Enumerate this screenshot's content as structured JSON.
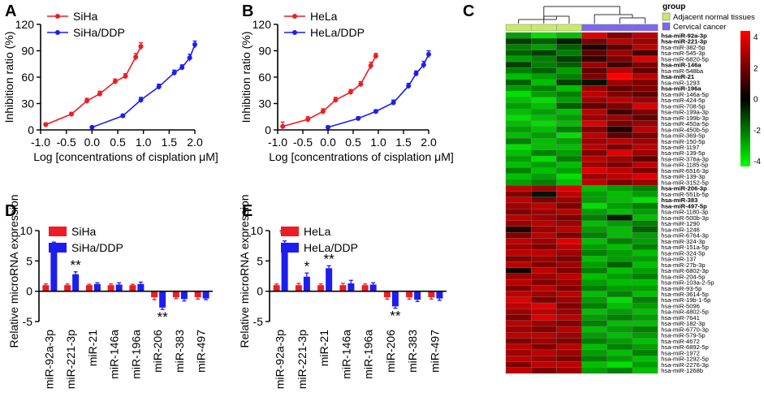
{
  "panel_labels": [
    "A",
    "B",
    "C",
    "D",
    "E"
  ],
  "colors": {
    "red": "#ee1c24",
    "blue": "#1d1df0",
    "normal": "#c8e96b",
    "cancer": "#7b68ee"
  },
  "chart_data": [
    {
      "id": "A",
      "type": "line",
      "xlabel": "Log [concentrations of cisplation μM]",
      "ylabel": "Inhibition ratio (%)",
      "xlim": [
        -1.0,
        2.0
      ],
      "ylim": [
        0,
        120
      ],
      "xticks": [
        -1.0,
        -0.5,
        0.0,
        0.5,
        1.0,
        1.5,
        2.0
      ],
      "xtick_labels": [
        "-1.0",
        "-0.5",
        "0.0",
        "0.5",
        "1.0",
        "1.5",
        "2.0"
      ],
      "yticks": [
        0,
        30,
        60,
        90,
        120
      ],
      "series": [
        {
          "name": "SiHa",
          "color": "#ee1c24",
          "x": [
            -0.9,
            -0.4,
            -0.1,
            0.15,
            0.45,
            0.65,
            0.85,
            0.95
          ],
          "y": [
            6,
            18,
            33,
            41,
            55,
            61,
            83,
            95
          ],
          "err": [
            2,
            2,
            3,
            3,
            3,
            3,
            4,
            4
          ]
        },
        {
          "name": "SiHa/DDP",
          "color": "#1d1df0",
          "x": [
            0.0,
            0.6,
            0.95,
            1.3,
            1.6,
            1.75,
            1.9,
            2.0
          ],
          "y": [
            3,
            16,
            34,
            49,
            65,
            71,
            82,
            97
          ],
          "err": [
            1,
            2,
            3,
            3,
            3,
            3,
            4,
            4
          ]
        }
      ]
    },
    {
      "id": "B",
      "type": "line",
      "xlabel": "Log [concentrations of cisplation μM]",
      "ylabel": "Inhibition ratio (%)",
      "xlim": [
        -1.0,
        2.0
      ],
      "ylim": [
        0,
        120
      ],
      "xticks": [
        -1.0,
        -0.5,
        0.0,
        0.5,
        1.0,
        1.5,
        2.0
      ],
      "xtick_labels": [
        "-1.0",
        "-0.5",
        "0.0",
        "0.5",
        "1.0",
        "1.5",
        "2.0"
      ],
      "yticks": [
        0,
        30,
        60,
        90,
        120
      ],
      "series": [
        {
          "name": "HeLa",
          "color": "#ee1c24",
          "x": [
            -0.9,
            -0.4,
            -0.1,
            0.15,
            0.45,
            0.65,
            0.85,
            0.95
          ],
          "y": [
            4,
            12,
            21,
            34,
            43,
            52,
            73,
            84
          ],
          "err": [
            5,
            3,
            3,
            3,
            3,
            3,
            4,
            3
          ]
        },
        {
          "name": "HeLa/DDP",
          "color": "#1d1df0",
          "x": [
            0.0,
            0.6,
            0.95,
            1.3,
            1.6,
            1.75,
            1.9,
            2.0
          ],
          "y": [
            3,
            13,
            21,
            31,
            50,
            64,
            74,
            86
          ],
          "err": [
            1,
            2,
            2,
            3,
            3,
            3,
            4,
            4
          ]
        }
      ]
    },
    {
      "id": "D",
      "type": "bar",
      "ylabel": "Relative microRNA expression",
      "ylim": [
        -5,
        10
      ],
      "yticks": [
        -5,
        0,
        5,
        10
      ],
      "categories": [
        "miR-92a-3p",
        "miR-221-3p",
        "miR-21",
        "miR-146a",
        "miR-196a",
        "miR-206",
        "miR-383",
        "miR-497"
      ],
      "series": [
        {
          "name": "SiHa",
          "color": "#ee1c24",
          "values": [
            1,
            1,
            1,
            1,
            1,
            -1,
            -1,
            -1
          ],
          "err": [
            0.2,
            0.2,
            0.15,
            0.2,
            0.15,
            0.4,
            0.2,
            0.3
          ]
        },
        {
          "name": "SiHa/DDP",
          "color": "#1d1df0",
          "values": [
            6.8,
            2.8,
            1.2,
            1.1,
            1.2,
            -2.7,
            -1.3,
            -1.2
          ],
          "err": [
            1.3,
            0.4,
            0.2,
            0.3,
            0.3,
            0.3,
            0.3,
            0.2
          ]
        }
      ],
      "annotations": [
        {
          "category": "miR-92a-3p",
          "text": "**",
          "position": "above"
        },
        {
          "category": "miR-221-3p",
          "text": "**",
          "position": "above"
        },
        {
          "category": "miR-206",
          "text": "**",
          "position": "below"
        }
      ]
    },
    {
      "id": "E",
      "type": "bar",
      "ylabel": "Relative microRNA expression",
      "ylim": [
        -5,
        10
      ],
      "yticks": [
        -5,
        0,
        5,
        10
      ],
      "categories": [
        "miR-92a-3p",
        "miR-221-3p",
        "miR-21",
        "miR-146a",
        "miR-196a",
        "miR-206",
        "miR-383",
        "miR-497"
      ],
      "series": [
        {
          "name": "HeLa",
          "color": "#ee1c24",
          "values": [
            1,
            1,
            1,
            1,
            1,
            -1,
            -1,
            -1
          ],
          "err": [
            0.2,
            0.3,
            0.2,
            0.3,
            0.2,
            0.3,
            0.3,
            0.3
          ]
        },
        {
          "name": "HeLa/DDP",
          "color": "#1d1df0",
          "values": [
            7.8,
            2.4,
            3.8,
            1.3,
            1.1,
            -2.5,
            -1.4,
            -1.2
          ],
          "err": [
            0.5,
            0.6,
            0.4,
            0.5,
            0.3,
            0.3,
            0.3,
            0.3
          ]
        }
      ],
      "annotations": [
        {
          "category": "miR-92a-3p",
          "text": "**",
          "position": "above"
        },
        {
          "category": "miR-221-3p",
          "text": "*",
          "position": "above"
        },
        {
          "category": "miR-21",
          "text": "**",
          "position": "above"
        },
        {
          "category": "miR-206",
          "text": "**",
          "position": "below"
        }
      ]
    },
    {
      "id": "C",
      "type": "heatmap",
      "legend_title": "group",
      "groups": [
        {
          "name": "Adjacent normal tissues",
          "color": "#c8e96b",
          "count": 3
        },
        {
          "name": "Cervical cancer",
          "color": "#7b68ee",
          "count": 3
        }
      ],
      "colorbar": {
        "min": -4,
        "max": 4,
        "ticks": [
          4,
          2,
          0,
          -2,
          -4
        ],
        "low_color": "#00ff00",
        "mid_color": "#000000",
        "high_color": "#ff0000"
      },
      "bold_rows": [
        "hsa-miR-92a-3p",
        "hsa-miR-221-3p",
        "hsa-miR-146a",
        "hsa-miR-21",
        "hsa-miR-196a",
        "hsa-miR-206-3p",
        "hsa-miR-383",
        "hsa-miR-497-5p"
      ],
      "rows": [
        {
          "label": "hsa-miR-92a-3p",
          "values": [
            -2.5,
            -3.5,
            -3.0,
            3.5,
            2.0,
            3.0
          ]
        },
        {
          "label": "hsa-miR-221-3p",
          "values": [
            -1.0,
            -1.5,
            -0.5,
            2.0,
            3.0,
            2.5
          ]
        },
        {
          "label": "hsa-miR-382-5p",
          "values": [
            -2.0,
            -2.5,
            -1.5,
            0.5,
            1.5,
            3.0
          ]
        },
        {
          "label": "hsa-miR-545-3p",
          "values": [
            -1.5,
            -1.0,
            -2.0,
            1.5,
            2.5,
            1.0
          ]
        },
        {
          "label": "hsa-miR-6820-5p",
          "values": [
            -2.5,
            -2.0,
            -1.0,
            0.8,
            2.0,
            3.5
          ]
        },
        {
          "label": "hsa-miR-146a",
          "values": [
            -1.0,
            -2.0,
            -1.5,
            2.5,
            1.0,
            2.0
          ]
        },
        {
          "label": "hsa-miR-548ba",
          "values": [
            -2.0,
            -1.5,
            -2.5,
            1.5,
            3.0,
            1.5
          ]
        },
        {
          "label": "hsa-miR-21",
          "values": [
            -3.0,
            -2.5,
            -2.0,
            2.0,
            4.0,
            3.0
          ]
        },
        {
          "label": "hsa-miR-1293",
          "values": [
            -1.5,
            -3.0,
            -1.0,
            -0.3,
            2.5,
            2.0
          ]
        },
        {
          "label": "hsa-miR-196a",
          "values": [
            -2.5,
            -2.0,
            -3.0,
            2.5,
            1.5,
            2.0
          ]
        },
        {
          "label": "hsa-miR-146a-5p",
          "values": [
            -3.5,
            -2.5,
            -2.0,
            3.0,
            2.0,
            1.5
          ]
        },
        {
          "label": "hsa-miR-424-5p",
          "values": [
            -3.0,
            -3.5,
            -2.5,
            2.5,
            3.0,
            2.5
          ]
        },
        {
          "label": "hsa-miR-708-5p",
          "values": [
            -2.5,
            -3.0,
            -1.5,
            1.5,
            2.0,
            3.5
          ]
        },
        {
          "label": "hsa-miR-199a-3p",
          "values": [
            -3.0,
            -2.5,
            -3.0,
            3.0,
            1.0,
            2.0
          ]
        },
        {
          "label": "hsa-miR-199b-3p",
          "values": [
            -3.5,
            -3.0,
            -2.5,
            2.5,
            2.5,
            1.5
          ]
        },
        {
          "label": "hsa-miR-450a-5p",
          "values": [
            -3.0,
            -3.5,
            -3.0,
            3.5,
            2.0,
            2.5
          ]
        },
        {
          "label": "hsa-miR-450b-5p",
          "values": [
            -2.5,
            -3.0,
            -2.0,
            2.0,
            0.5,
            3.0
          ]
        },
        {
          "label": "hsa-miR-369-5p",
          "values": [
            -3.0,
            -2.5,
            -3.5,
            3.0,
            1.5,
            2.0
          ]
        },
        {
          "label": "hsa-miR-150-5p",
          "values": [
            -2.0,
            -3.0,
            -2.5,
            2.5,
            3.0,
            2.5
          ]
        },
        {
          "label": "hsa-miR-1197",
          "values": [
            -3.5,
            -3.0,
            -3.0,
            3.0,
            2.0,
            3.0
          ]
        },
        {
          "label": "hsa-miR-139-5p",
          "values": [
            -3.0,
            -2.0,
            -2.5,
            2.0,
            3.5,
            2.5
          ]
        },
        {
          "label": "hsa-miR-376a-3p",
          "values": [
            -2.5,
            -3.5,
            -2.0,
            3.0,
            2.5,
            1.5
          ]
        },
        {
          "label": "hsa-miR-1185-5p",
          "values": [
            -3.0,
            -2.5,
            -3.0,
            2.5,
            2.0,
            3.0
          ]
        },
        {
          "label": "hsa-miR-6516-3p",
          "values": [
            -2.0,
            -3.0,
            -2.5,
            3.5,
            3.0,
            2.0
          ]
        },
        {
          "label": "hsa-miR-139-3p",
          "values": [
            -3.0,
            -2.5,
            -3.5,
            2.5,
            3.0,
            3.5
          ]
        },
        {
          "label": "hsa-miR-3152-5p",
          "values": [
            -2.5,
            -2.0,
            -3.0,
            3.0,
            2.0,
            2.5
          ]
        },
        {
          "label": "hsa-miR-206-3p",
          "values": [
            3.0,
            2.5,
            3.5,
            -3.0,
            -2.5,
            -2.0
          ]
        },
        {
          "label": "hsa-miR-551b-5p",
          "values": [
            2.0,
            -0.3,
            3.0,
            -2.5,
            -3.0,
            -2.5
          ]
        },
        {
          "label": "hsa-miR-383",
          "values": [
            3.0,
            2.0,
            2.5,
            -2.5,
            -3.0,
            -3.5
          ]
        },
        {
          "label": "hsa-miR-497-5p",
          "values": [
            2.5,
            3.0,
            2.0,
            -3.5,
            -2.5,
            -2.0
          ]
        },
        {
          "label": "hsa-miR-1180-3p",
          "values": [
            2.0,
            2.5,
            3.0,
            -2.5,
            -3.0,
            -2.5
          ]
        },
        {
          "label": "hsa-miR-500b-3p",
          "values": [
            3.0,
            2.5,
            2.0,
            -2.0,
            -0.5,
            -3.0
          ]
        },
        {
          "label": "hsa-miR-1290",
          "values": [
            2.5,
            3.0,
            2.5,
            -3.0,
            -2.5,
            -2.0
          ]
        },
        {
          "label": "hsa-miR-1246",
          "values": [
            0.5,
            2.5,
            3.0,
            -2.5,
            -3.0,
            -1.5
          ]
        },
        {
          "label": "hsa-miR-6764-3p",
          "values": [
            2.0,
            3.0,
            2.0,
            -2.0,
            -3.0,
            -2.5
          ]
        },
        {
          "label": "hsa-miR-324-3p",
          "values": [
            3.0,
            2.5,
            3.5,
            -3.0,
            -2.0,
            -2.5
          ]
        },
        {
          "label": "hsa-miR-151a-5p",
          "values": [
            2.5,
            2.0,
            3.0,
            -2.5,
            -3.0,
            -2.0
          ]
        },
        {
          "label": "hsa-miR-324-5p",
          "values": [
            3.0,
            3.0,
            2.5,
            -2.0,
            -2.5,
            -3.0
          ]
        },
        {
          "label": "hsa-miR-137",
          "values": [
            2.0,
            2.5,
            2.0,
            -3.0,
            -2.5,
            -2.5
          ]
        },
        {
          "label": "hsa-miR-27b-3p",
          "values": [
            3.0,
            2.0,
            2.5,
            -2.5,
            -1.5,
            -3.0
          ]
        },
        {
          "label": "hsa-miR-6802-3p",
          "values": [
            0.3,
            3.0,
            2.0,
            -2.0,
            -3.0,
            -2.5
          ]
        },
        {
          "label": "hsa-miR-204-5p",
          "values": [
            2.5,
            2.5,
            3.0,
            -3.0,
            -2.5,
            -2.0
          ]
        },
        {
          "label": "hsa-miR-103a-2-5p",
          "values": [
            3.0,
            2.0,
            2.5,
            -2.5,
            -3.0,
            -3.0
          ]
        },
        {
          "label": "hsa-miR-93-5p",
          "values": [
            2.0,
            3.0,
            2.0,
            -2.0,
            -2.5,
            -2.5
          ]
        },
        {
          "label": "hsa-miR-3614-5p",
          "values": [
            3.0,
            2.5,
            3.0,
            -3.0,
            -2.0,
            -3.0
          ]
        },
        {
          "label": "hsa-miR-19b-1-5p",
          "values": [
            3.5,
            2.0,
            2.5,
            -2.5,
            -3.5,
            -2.0
          ]
        },
        {
          "label": "hsa-miR-5096",
          "values": [
            3.0,
            3.5,
            2.0,
            -2.0,
            -3.0,
            -2.5
          ]
        },
        {
          "label": "hsa-miR-4802-5p",
          "values": [
            2.5,
            3.0,
            2.5,
            -3.0,
            -2.5,
            -3.0
          ]
        },
        {
          "label": "hsa-miR-7641",
          "values": [
            2.0,
            3.5,
            3.0,
            -2.5,
            -2.0,
            -2.5
          ]
        },
        {
          "label": "hsa-miR-182-3p",
          "values": [
            3.0,
            2.5,
            2.0,
            -2.0,
            -3.0,
            -3.0
          ]
        },
        {
          "label": "hsa-miR-6770-3p",
          "values": [
            2.5,
            2.0,
            3.0,
            -3.0,
            -2.5,
            -2.0
          ]
        },
        {
          "label": "hsa-miR-579-5p",
          "values": [
            3.0,
            3.0,
            2.5,
            -2.5,
            -3.0,
            -2.5
          ]
        },
        {
          "label": "hsa-miR-4672",
          "values": [
            2.0,
            2.5,
            2.0,
            -2.0,
            -2.5,
            -3.0
          ]
        },
        {
          "label": "hsa-miR-6892-5p",
          "values": [
            3.0,
            2.0,
            3.0,
            -3.0,
            -2.0,
            -2.5
          ]
        },
        {
          "label": "hsa-miR-1972",
          "values": [
            2.5,
            3.0,
            2.5,
            -2.5,
            -3.0,
            -2.0
          ]
        },
        {
          "label": "hsa-miR-1292-5p",
          "values": [
            3.0,
            2.5,
            2.0,
            -2.0,
            -2.5,
            -3.0
          ]
        },
        {
          "label": "hsa-miR-2276-3p",
          "values": [
            2.0,
            3.0,
            3.0,
            -3.0,
            -3.5,
            -2.5
          ]
        },
        {
          "label": "hsa-miR-1268b",
          "values": [
            3.0,
            2.0,
            2.5,
            -2.5,
            -2.0,
            -3.0
          ]
        }
      ]
    }
  ]
}
